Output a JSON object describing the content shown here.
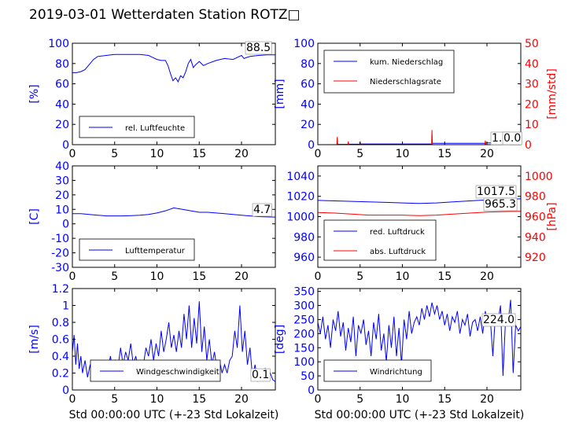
{
  "page_title": "2019-03-01 Wetterdaten Station ROTZ□",
  "shared_xlabel": "Std 00:00:00 UTC (+-23 Std Lokalzeit)",
  "colors": {
    "blue": "#0000ff",
    "red": "#ff0000",
    "axis": "#000000"
  },
  "chart_data": [
    {
      "id": "humidity",
      "type": "line",
      "ylabel": "[%]",
      "ylim": [
        0,
        100
      ],
      "yticks": [
        0,
        20,
        40,
        60,
        80,
        100
      ],
      "xlim": [
        0,
        24
      ],
      "xticks": [
        0,
        5,
        10,
        15,
        20
      ],
      "legend_position": "lower-left",
      "last_value_label": "88.5",
      "series": [
        {
          "name": "rel. Luftfeuchte",
          "color": "#0000ff",
          "x": [
            0,
            0.5,
            1,
            1.5,
            2,
            2.5,
            3,
            4,
            5,
            6,
            7,
            8,
            9,
            9.5,
            10,
            10.5,
            11,
            11.3,
            11.6,
            11.9,
            12.2,
            12.5,
            12.8,
            13.1,
            13.4,
            13.7,
            14,
            14.3,
            14.6,
            15,
            15.5,
            16,
            17,
            18,
            19,
            19.5,
            20,
            20.3,
            20.6,
            21,
            22,
            23,
            24
          ],
          "y": [
            71,
            71,
            72,
            74,
            79,
            84,
            87,
            88,
            89,
            89,
            89,
            89,
            88,
            86,
            84,
            83,
            83,
            78,
            70,
            63,
            66,
            62,
            68,
            66,
            72,
            80,
            84,
            76,
            79,
            82,
            78,
            80,
            83,
            85,
            84,
            86,
            88,
            85,
            86,
            87,
            88,
            88.5,
            88.5
          ]
        }
      ]
    },
    {
      "id": "precipitation",
      "type": "line",
      "ylabel": "[mm]",
      "ylim": [
        0,
        100
      ],
      "yticks": [
        0,
        20,
        40,
        60,
        80,
        100
      ],
      "y2label": "[mm/std]",
      "y2lim": [
        0,
        50
      ],
      "y2ticks": [
        0,
        10,
        20,
        30,
        40,
        50
      ],
      "xlim": [
        0,
        24
      ],
      "xticks": [
        0,
        5,
        10,
        15,
        20
      ],
      "legend_position": "upper-left",
      "last_value_label": "1.7",
      "last_value_label_2": "0.0",
      "series": [
        {
          "name": "kum. Niederschlag",
          "color": "#0000ff",
          "axis": "left",
          "x": [
            0,
            2.3,
            2.4,
            3.5,
            3.6,
            5.0,
            5.1,
            13.5,
            13.6,
            19.7,
            19.8,
            24
          ],
          "y": [
            0,
            0,
            0.3,
            0.3,
            0.5,
            0.5,
            0.7,
            0.7,
            1.4,
            1.4,
            1.7,
            1.7
          ]
        },
        {
          "name": "Niederschlagsrate",
          "color": "#ff0000",
          "axis": "right",
          "x": [
            0,
            2.25,
            2.3,
            2.35,
            3.55,
            3.6,
            3.65,
            4.95,
            5.0,
            5.05,
            13.45,
            13.5,
            13.55,
            19.75,
            19.8,
            19.85,
            24
          ],
          "y": [
            0,
            0,
            3.8,
            0,
            0,
            1.6,
            0,
            0,
            1.4,
            0,
            0,
            7.2,
            0,
            0,
            2.0,
            0,
            0
          ]
        }
      ]
    },
    {
      "id": "temperature",
      "type": "line",
      "ylabel": "[C]",
      "ylim": [
        -30,
        40
      ],
      "yticks": [
        -30,
        -20,
        -10,
        0,
        10,
        20,
        30,
        40
      ],
      "xlim": [
        0,
        24
      ],
      "xticks": [
        0,
        5,
        10,
        15,
        20
      ],
      "legend_position": "lower-left",
      "last_value_label": "4.7",
      "series": [
        {
          "name": "Lufttemperatur",
          "color": "#0000ff",
          "x": [
            0,
            1,
            2,
            3,
            4,
            5,
            6,
            7,
            8,
            9,
            10,
            11,
            11.5,
            12,
            12.5,
            13,
            14,
            15,
            16,
            17,
            18,
            19,
            20,
            21,
            22,
            23,
            24
          ],
          "y": [
            7,
            7,
            6.5,
            6,
            5.5,
            5.5,
            5.5,
            5.7,
            6,
            6.5,
            7.5,
            9,
            10,
            11,
            10.5,
            10,
            9,
            8,
            8,
            7.5,
            7,
            6.5,
            6,
            5.5,
            5,
            4.8,
            4.7
          ]
        }
      ]
    },
    {
      "id": "pressure",
      "type": "line",
      "ylim": [
        950,
        1050
      ],
      "yticks": [
        960,
        980,
        1000,
        1020,
        1040
      ],
      "y2label": "[hPa]",
      "y2lim": [
        910,
        1010
      ],
      "y2ticks": [
        920,
        940,
        960,
        980,
        1000
      ],
      "xlim": [
        0,
        24
      ],
      "xticks": [
        0,
        5,
        10,
        15,
        20
      ],
      "legend_position": "lower-left",
      "last_value_label": "1017.5",
      "last_value_label_2": "965.3",
      "series": [
        {
          "name": "red. Luftdruck",
          "color": "#0000ff",
          "axis": "left",
          "x": [
            0,
            2,
            4,
            6,
            8,
            10,
            12,
            14,
            16,
            18,
            20,
            22,
            24
          ],
          "y": [
            1016,
            1015.5,
            1015,
            1014.5,
            1014,
            1013.5,
            1013,
            1013.5,
            1014.5,
            1015.5,
            1016.5,
            1017,
            1017.5
          ]
        },
        {
          "name": "abs. Luftdruck",
          "color": "#ff0000",
          "axis": "right",
          "x": [
            0,
            2,
            4,
            6,
            8,
            10,
            12,
            14,
            16,
            18,
            20,
            22,
            24
          ],
          "y": [
            964,
            963.5,
            962.5,
            961.5,
            961.5,
            961.5,
            961,
            961.5,
            962.5,
            963.5,
            964.5,
            965,
            965.3
          ]
        }
      ]
    },
    {
      "id": "windspeed",
      "type": "line",
      "ylabel": "[m/s]",
      "ylim": [
        0,
        1.2
      ],
      "yticks": [
        0,
        0.2,
        0.4,
        0.6,
        0.8,
        1.0,
        1.2
      ],
      "xlim": [
        0,
        24
      ],
      "xticks": [
        0,
        5,
        10,
        15,
        20
      ],
      "legend_position": "lower-center",
      "last_value_label": "0.1",
      "series": [
        {
          "name": "Windgeschwindigkeit",
          "color": "#0000ff",
          "x": [
            0,
            0.2,
            0.4,
            0.6,
            0.8,
            1,
            1.2,
            1.5,
            1.8,
            2.1,
            2.4,
            2.7,
            3,
            3.3,
            3.6,
            3.9,
            4.2,
            4.5,
            4.8,
            5.1,
            5.4,
            5.7,
            6,
            6.3,
            6.6,
            6.9,
            7.2,
            7.5,
            7.8,
            8.1,
            8.4,
            8.7,
            9,
            9.3,
            9.6,
            9.9,
            10.2,
            10.5,
            10.8,
            11.1,
            11.4,
            11.7,
            12,
            12.3,
            12.6,
            12.9,
            13.2,
            13.5,
            13.8,
            14.1,
            14.4,
            14.7,
            15,
            15.3,
            15.6,
            15.9,
            16.2,
            16.5,
            16.8,
            17.1,
            17.4,
            17.7,
            18,
            18.3,
            18.6,
            18.9,
            19.2,
            19.5,
            19.8,
            20.1,
            20.4,
            20.7,
            21,
            21.3,
            21.6,
            21.9,
            22.2,
            22.5,
            22.8,
            23.1,
            23.4,
            23.7,
            24
          ],
          "y": [
            0.45,
            0.65,
            0.3,
            0.55,
            0.25,
            0.4,
            0.2,
            0.35,
            0.15,
            0.3,
            0.12,
            0.25,
            0.15,
            0.3,
            0.18,
            0.35,
            0.25,
            0.4,
            0.2,
            0.35,
            0.28,
            0.5,
            0.3,
            0.45,
            0.35,
            0.55,
            0.3,
            0.4,
            0.25,
            0.35,
            0.3,
            0.5,
            0.4,
            0.6,
            0.35,
            0.55,
            0.4,
            0.7,
            0.45,
            0.6,
            0.8,
            0.5,
            0.65,
            0.45,
            0.7,
            0.5,
            0.9,
            0.6,
            1.0,
            0.5,
            0.85,
            0.55,
            1.05,
            0.45,
            0.75,
            0.35,
            0.6,
            0.3,
            0.45,
            0.25,
            0.35,
            0.2,
            0.3,
            0.2,
            0.35,
            0.4,
            0.7,
            0.5,
            1.0,
            0.45,
            0.7,
            0.3,
            0.5,
            0.15,
            0.3,
            0.1,
            0.2,
            0.12,
            0.25,
            0.15,
            0.2,
            0.12,
            0.1
          ]
        }
      ]
    },
    {
      "id": "winddirection",
      "type": "line",
      "ylabel": "[deg]",
      "ylim": [
        0,
        360
      ],
      "yticks": [
        0,
        50,
        100,
        150,
        200,
        250,
        300,
        350
      ],
      "xlim": [
        0,
        24
      ],
      "xticks": [
        0,
        5,
        10,
        15,
        20
      ],
      "legend_position": "lower-left",
      "last_value_label": "224.0",
      "series": [
        {
          "name": "Windrichtung",
          "color": "#0000ff",
          "x": [
            0,
            0.3,
            0.6,
            0.9,
            1.2,
            1.5,
            1.8,
            2.1,
            2.4,
            2.7,
            3,
            3.3,
            3.6,
            3.9,
            4.2,
            4.5,
            4.8,
            5.1,
            5.4,
            5.7,
            6,
            6.3,
            6.6,
            6.9,
            7.2,
            7.5,
            7.8,
            8.1,
            8.4,
            8.7,
            9,
            9.3,
            9.6,
            9.9,
            10.2,
            10.5,
            10.8,
            11.1,
            11.4,
            11.7,
            12,
            12.3,
            12.6,
            12.9,
            13.2,
            13.5,
            13.8,
            14.1,
            14.4,
            14.7,
            15,
            15.3,
            15.6,
            15.9,
            16.2,
            16.5,
            16.8,
            17.1,
            17.4,
            17.7,
            18,
            18.3,
            18.6,
            18.9,
            19.2,
            19.5,
            19.8,
            20.1,
            20.4,
            20.7,
            21,
            21.3,
            21.6,
            21.9,
            22.2,
            22.5,
            22.8,
            23.1,
            23.4,
            23.7,
            24
          ],
          "y": [
            240,
            200,
            260,
            180,
            230,
            150,
            250,
            210,
            280,
            190,
            240,
            140,
            220,
            170,
            260,
            120,
            230,
            200,
            250,
            160,
            210,
            120,
            240,
            180,
            270,
            140,
            200,
            100,
            230,
            150,
            260,
            120,
            220,
            90,
            250,
            180,
            280,
            200,
            240,
            260,
            230,
            290,
            250,
            300,
            260,
            310,
            270,
            300,
            250,
            280,
            230,
            270,
            210,
            260,
            240,
            280,
            200,
            250,
            230,
            270,
            190,
            240,
            250,
            210,
            260,
            200,
            280,
            230,
            250,
            120,
            270,
            240,
            300,
            50,
            250,
            240,
            320,
            60,
            230,
            210,
            224
          ]
        }
      ]
    }
  ]
}
